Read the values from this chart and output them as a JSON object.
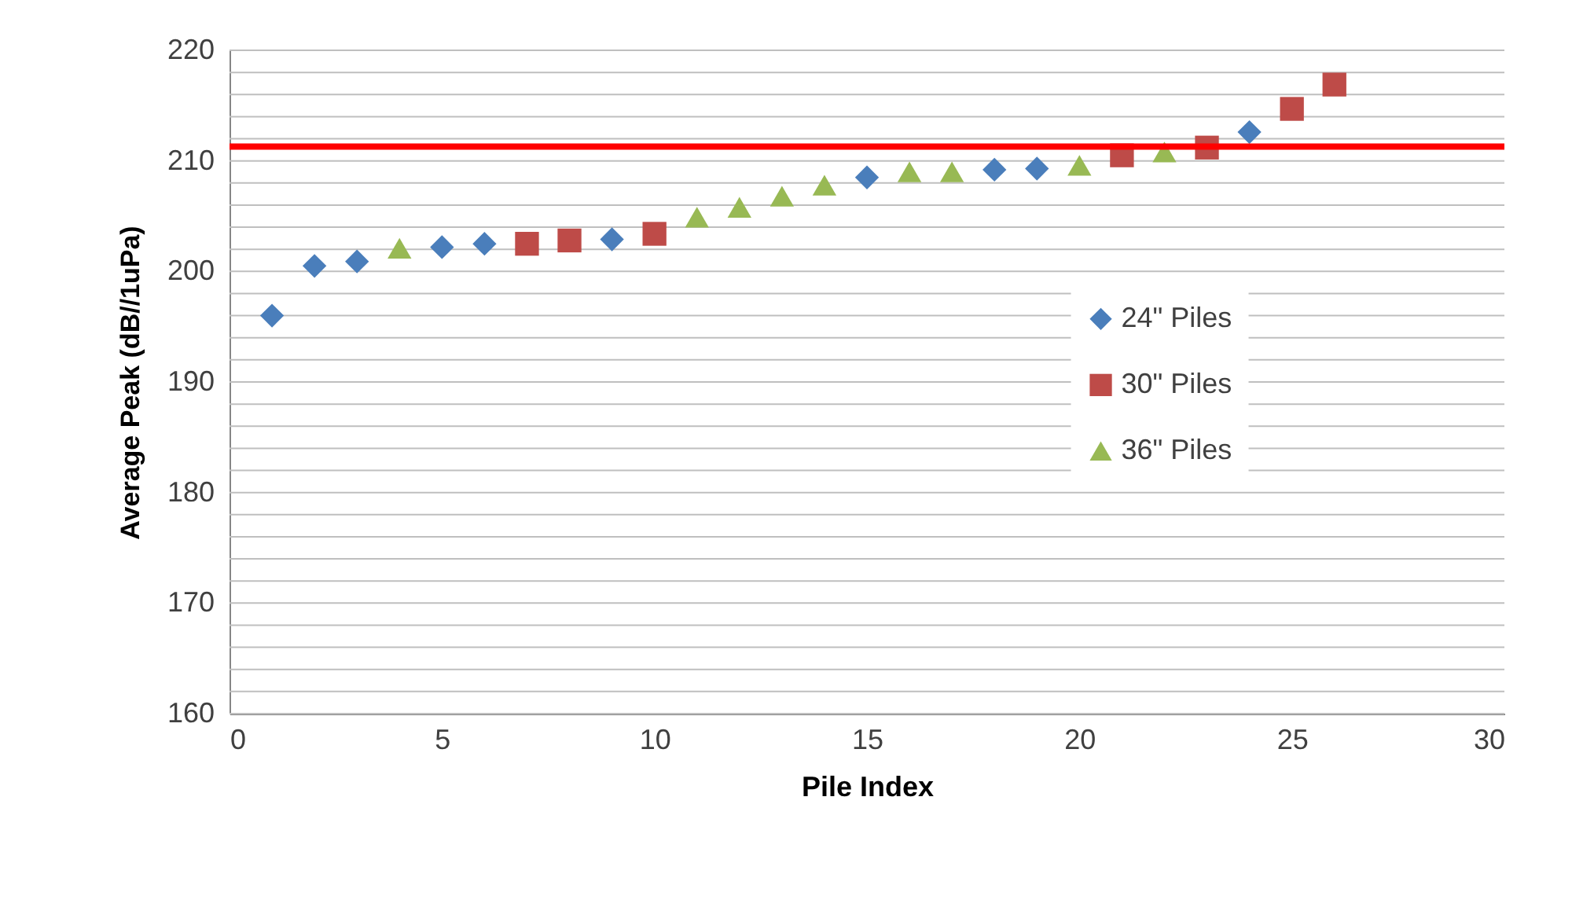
{
  "chart_data": {
    "type": "scatter",
    "xlabel": "Pile Index",
    "ylabel": "Average Peak (dB//1uPa)",
    "xlim": [
      0,
      30
    ],
    "xticks": [
      0,
      5,
      10,
      15,
      20,
      25,
      30
    ],
    "ylim": [
      160,
      220
    ],
    "yticks": [
      160,
      {
        "value": 162,
        "label": null
      },
      {
        "value": 164,
        "label": null
      },
      {
        "value": 166,
        "label": null
      },
      {
        "value": 168,
        "label": null
      },
      170,
      {
        "value": 172,
        "label": null
      },
      {
        "value": 174,
        "label": null
      },
      {
        "value": 176,
        "label": null
      },
      {
        "value": 178,
        "label": null
      },
      180,
      {
        "value": 182,
        "label": null
      },
      {
        "value": 184,
        "label": null
      },
      {
        "value": 186,
        "label": null
      },
      {
        "value": 188,
        "label": null
      },
      190,
      {
        "value": 192,
        "label": null
      },
      {
        "value": 194,
        "label": null
      },
      {
        "value": 196,
        "label": null
      },
      {
        "value": 198,
        "label": null
      },
      200,
      {
        "value": 202,
        "label": null
      },
      {
        "value": 204,
        "label": null
      },
      {
        "value": 206,
        "label": null
      },
      {
        "value": 208,
        "label": null
      },
      210,
      {
        "value": 212,
        "label": null
      },
      {
        "value": 214,
        "label": null
      },
      {
        "value": 216,
        "label": null
      },
      {
        "value": 218,
        "label": null
      },
      220
    ],
    "grid": "y",
    "legend": "right",
    "ref_lines": [
      {
        "axis": "y",
        "value": 211.3,
        "color": "#ff0000"
      }
    ],
    "series": [
      {
        "name": "24\" Piles",
        "color": "#4a7ebb",
        "marker": "diamond",
        "x": [
          1,
          2,
          3,
          5,
          6,
          9,
          15,
          18,
          19,
          24
        ],
        "values": [
          196.0,
          200.5,
          200.9,
          202.2,
          202.5,
          202.9,
          208.5,
          209.2,
          209.3,
          212.6
        ]
      },
      {
        "name": "30\" Piles",
        "color": "#be4b48",
        "marker": "square",
        "x": [
          7,
          8,
          10,
          21,
          23,
          25,
          26
        ],
        "values": [
          202.5,
          202.8,
          203.4,
          210.5,
          211.2,
          214.7,
          216.9
        ]
      },
      {
        "name": "36\" Piles",
        "color": "#98b954",
        "marker": "triangle",
        "x": [
          4,
          11,
          12,
          13,
          14,
          16,
          17,
          20,
          22
        ],
        "values": [
          202.1,
          204.9,
          205.8,
          206.8,
          207.8,
          209.0,
          209.0,
          209.6,
          210.8
        ]
      }
    ]
  }
}
